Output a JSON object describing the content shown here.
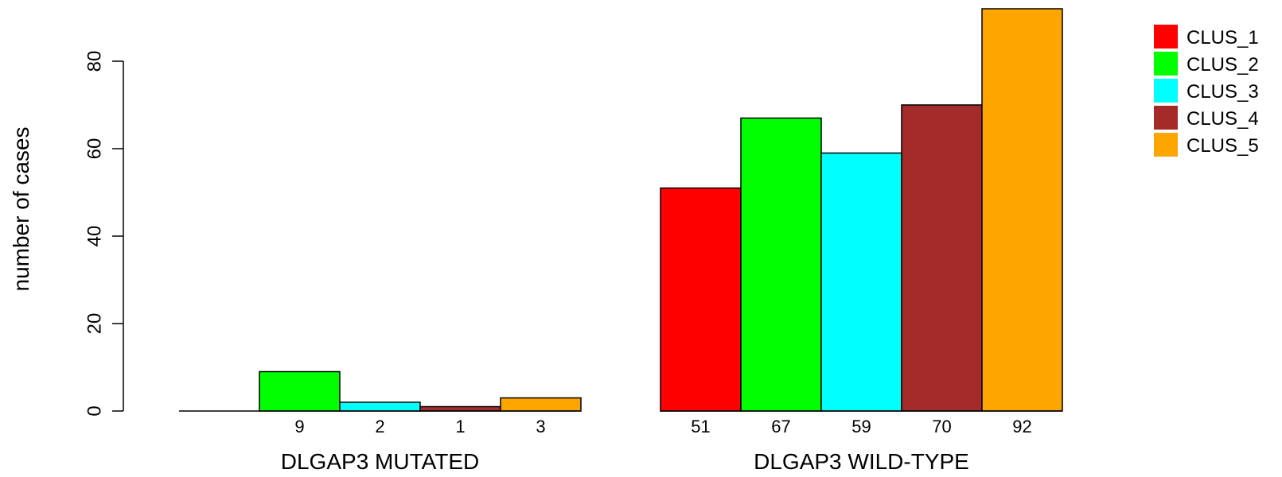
{
  "chart_data": {
    "type": "bar",
    "ylabel": "number of cases",
    "ylim": [
      0,
      92
    ],
    "yticks": [
      0,
      20,
      40,
      60,
      80
    ],
    "groups": [
      {
        "label": "DLGAP3 MUTATED",
        "values": [
          0,
          9,
          2,
          1,
          3
        ],
        "labels": [
          "",
          "9",
          "2",
          "1",
          "3"
        ]
      },
      {
        "label": "DLGAP3 WILD-TYPE",
        "values": [
          51,
          67,
          59,
          70,
          92
        ],
        "labels": [
          "51",
          "67",
          "59",
          "70",
          "92"
        ]
      }
    ],
    "series": [
      {
        "name": "CLUS_1",
        "color": "#ff0000"
      },
      {
        "name": "CLUS_2",
        "color": "#00ff00"
      },
      {
        "name": "CLUS_3",
        "color": "#00ffff"
      },
      {
        "name": "CLUS_4",
        "color": "#a52a2a"
      },
      {
        "name": "CLUS_5",
        "color": "#ffa500"
      }
    ],
    "legend": "top-right",
    "grid": false
  }
}
